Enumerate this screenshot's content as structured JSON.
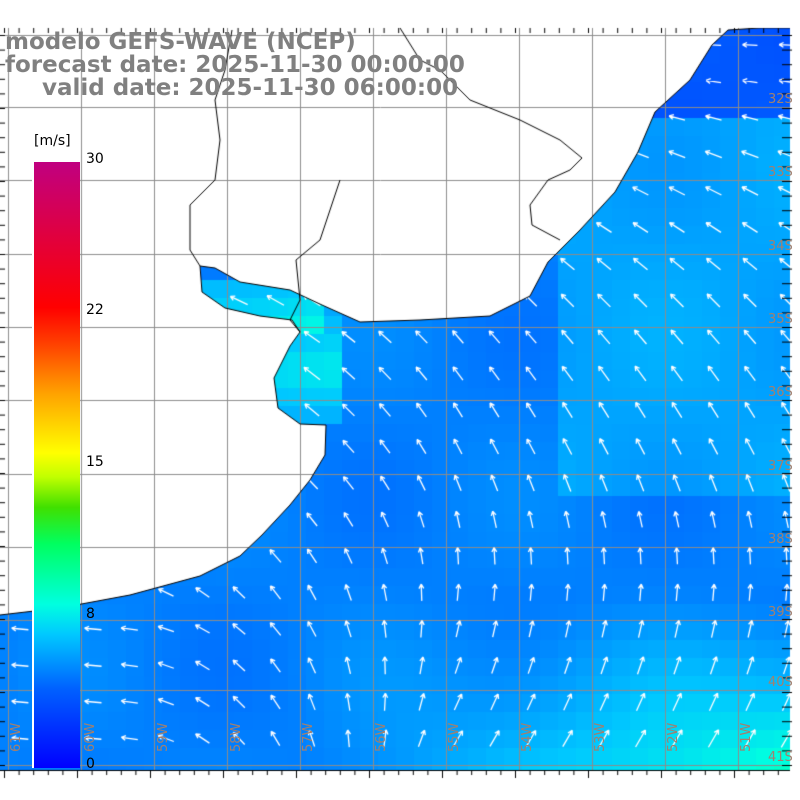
{
  "title": {
    "model": "modelo GEFS-WAVE (NCEP)",
    "forecast": "forecast date: 2025-11-30 00:00:00",
    "valid": "valid date: 2025-11-30 06:00:00"
  },
  "colorbar": {
    "unit": "[m/s]",
    "labels": [
      "30",
      "22",
      "15",
      "8",
      "0"
    ],
    "range": [
      0,
      30
    ]
  },
  "latitudes": [
    "32S",
    "33S",
    "34S",
    "35S",
    "36S",
    "37S",
    "38S",
    "39S",
    "40S",
    "41S"
  ],
  "longitudes": [
    "61W",
    "60W",
    "59W",
    "58W",
    "57W",
    "56W",
    "55W",
    "54W",
    "53W",
    "52W",
    "51W"
  ],
  "colors": {
    "land": "#ffffff",
    "grid": "#8c8c8c",
    "label": "#a08070",
    "title": "#808080"
  }
}
